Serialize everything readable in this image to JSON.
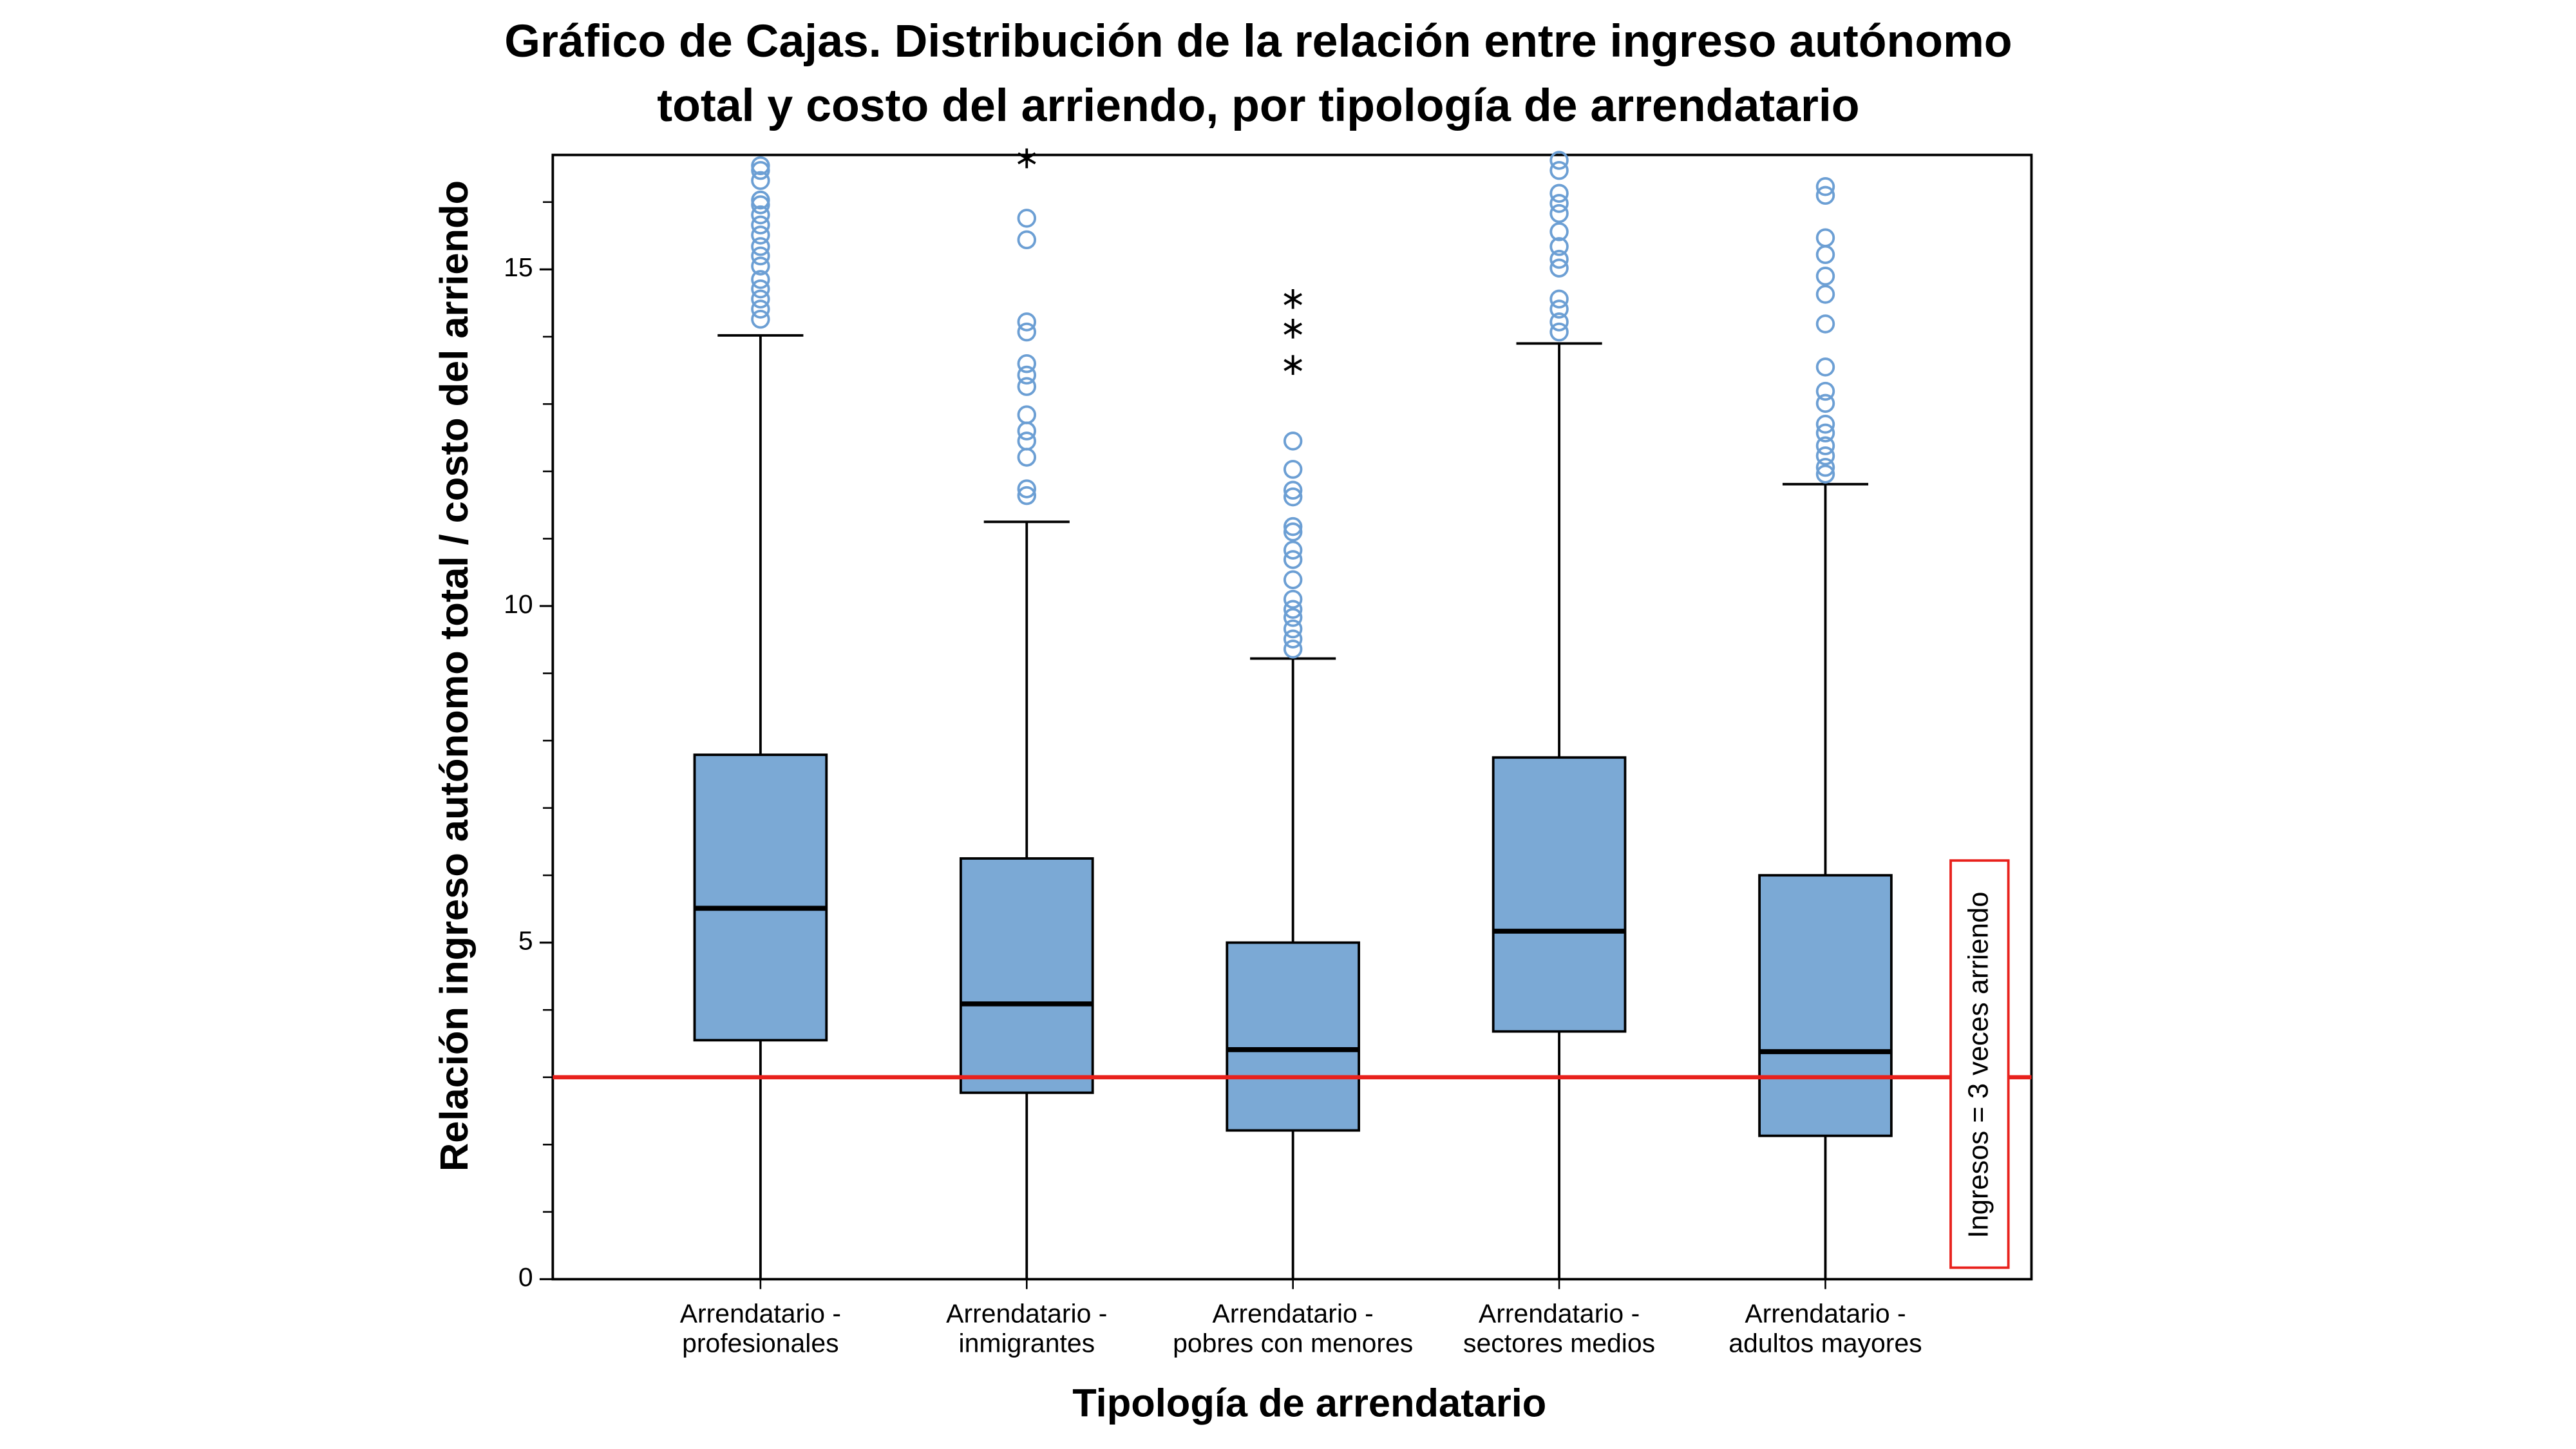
{
  "chart_data": {
    "type": "box",
    "title": [
      "Gráfico de Cajas. Distribución de la relación entre ingreso autónomo",
      "total y costo del arriendo, por tipología de arrendatario"
    ],
    "x_label": "Tipología de arrendatario",
    "y_label": "Relación ingreso autónomo total / costo del arriendo",
    "categories": [
      [
        "Arrendatario -",
        "profesionales"
      ],
      [
        "Arrendatario -",
        "inmigrantes"
      ],
      [
        "Arrendatario -",
        "pobres con menores"
      ],
      [
        "Arrendatario -",
        "sectores medios"
      ],
      [
        "Arrendatario -",
        "adultos mayores"
      ]
    ],
    "color": "#7ba9d5",
    "outlier_color": "#6c9fd4",
    "ylim": [
      0,
      16.7
    ],
    "yticks": [
      0,
      5,
      10,
      15
    ],
    "yminor_ticks": [
      1,
      2,
      3,
      4,
      6,
      7,
      8,
      9,
      11,
      12,
      13,
      14,
      16
    ],
    "boxes": [
      {
        "whisker_low": 0,
        "q1": 3.55,
        "median": 5.51,
        "q3": 7.79,
        "whisker_high": 14.02,
        "outliers": [
          16.54,
          16.47,
          16.32,
          16.03,
          15.96,
          15.81,
          15.66,
          15.51,
          15.34,
          15.2,
          15.05,
          14.85,
          14.71,
          14.56,
          14.41,
          14.26
        ],
        "extremes": []
      },
      {
        "whisker_low": 0,
        "q1": 2.77,
        "median": 4.09,
        "q3": 6.25,
        "whisker_high": 11.25,
        "outliers": [
          15.76,
          15.44,
          14.22,
          14.07,
          13.6,
          13.43,
          13.26,
          12.84,
          12.6,
          12.45,
          12.21,
          11.74,
          11.64
        ],
        "extremes": [
          16.65
        ]
      },
      {
        "whisker_low": 0,
        "q1": 2.21,
        "median": 3.41,
        "q3": 5.0,
        "whisker_high": 9.22,
        "outliers": [
          12.45,
          12.03,
          11.72,
          11.62,
          11.18,
          11.1,
          10.83,
          10.69,
          10.39,
          10.1,
          9.95,
          9.83,
          9.66,
          9.51,
          9.36
        ],
        "extremes": [
          14.56,
          14.12,
          13.58
        ]
      },
      {
        "whisker_low": 0,
        "q1": 3.68,
        "median": 5.17,
        "q3": 7.75,
        "whisker_high": 13.9,
        "outliers": [
          16.62,
          16.47,
          16.13,
          15.98,
          15.83,
          15.56,
          15.34,
          15.15,
          15.02,
          14.56,
          14.41,
          14.22,
          14.07
        ],
        "extremes": []
      },
      {
        "whisker_low": 0,
        "q1": 2.13,
        "median": 3.38,
        "q3": 6.0,
        "whisker_high": 11.81,
        "outliers": [
          16.23,
          16.1,
          15.47,
          15.22,
          14.9,
          14.63,
          14.19,
          13.55,
          13.19,
          13.01,
          12.7,
          12.57,
          12.38,
          12.23,
          12.06,
          11.96
        ],
        "extremes": []
      }
    ],
    "reference_line": {
      "value": 3,
      "color": "#e8211c",
      "label": "Ingresos = 3 veces arriendo"
    }
  }
}
